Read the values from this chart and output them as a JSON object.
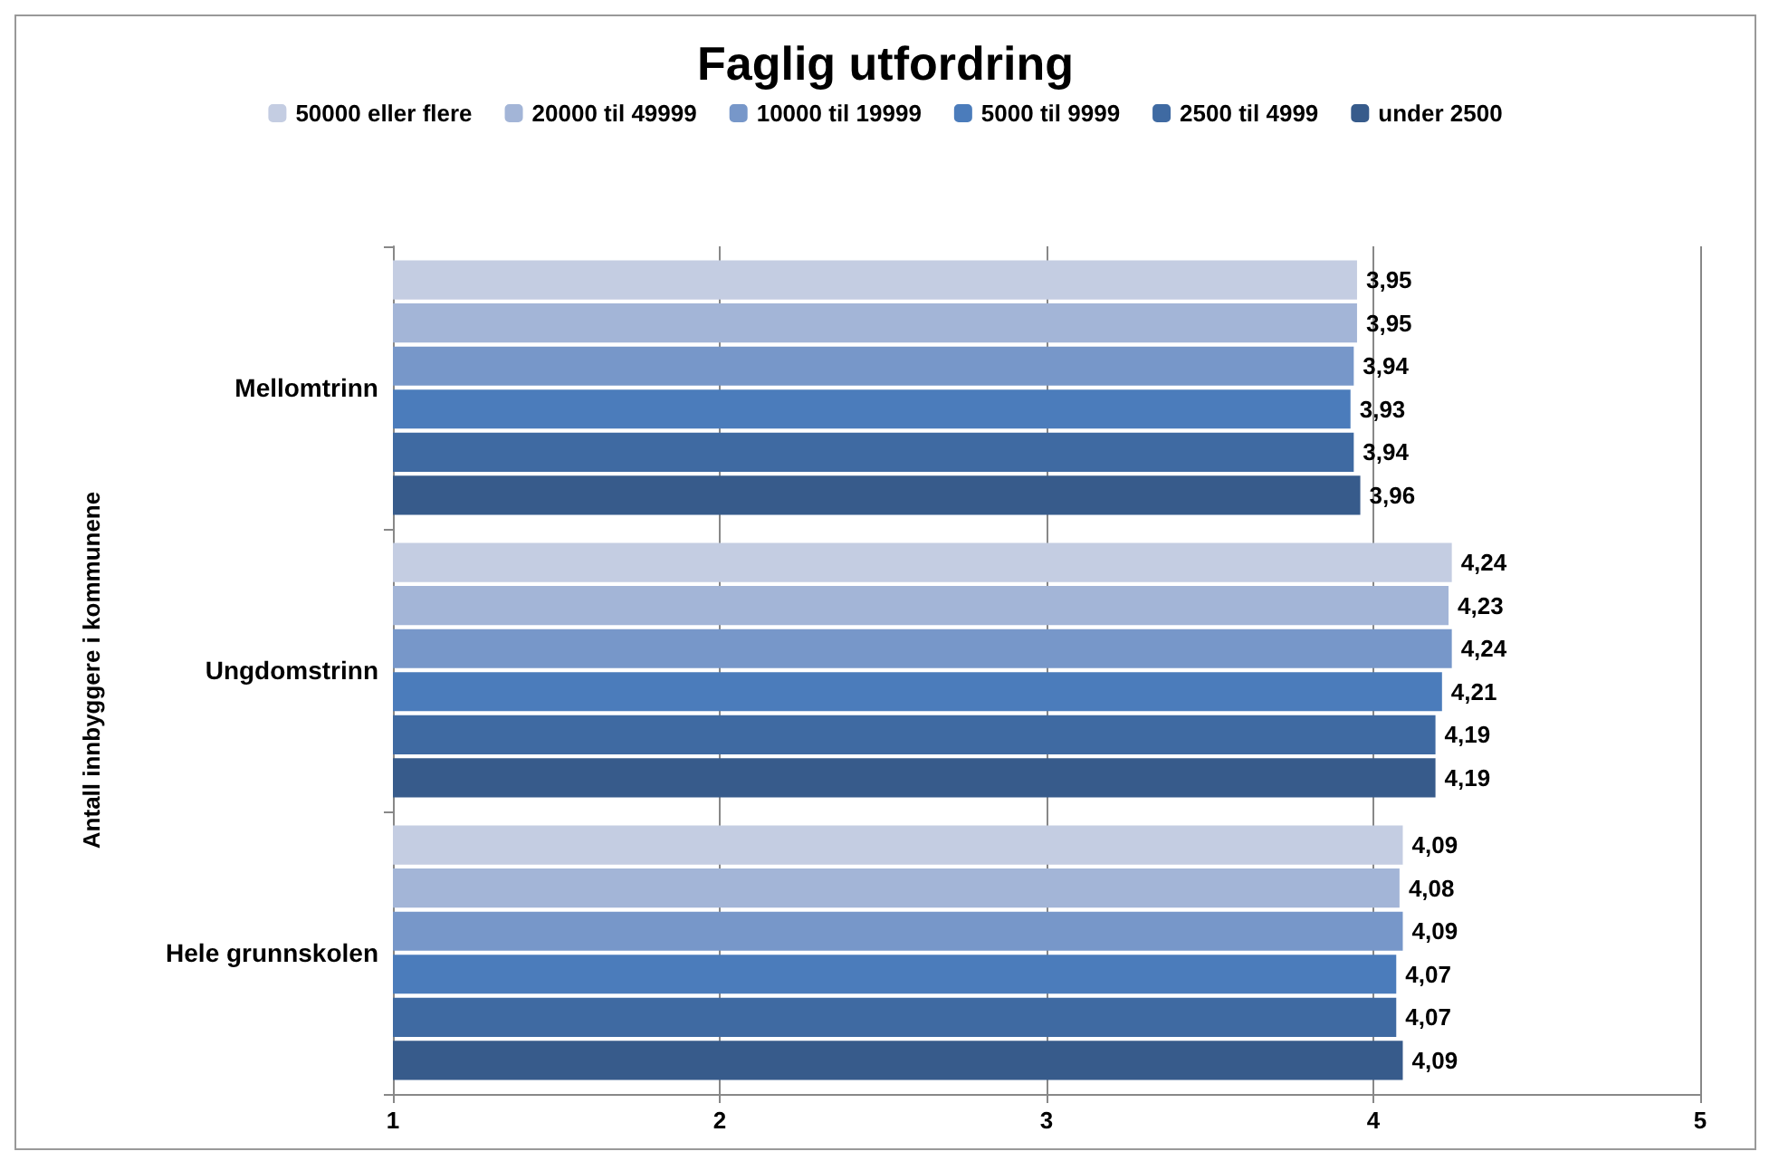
{
  "chart_data": {
    "type": "bar",
    "orientation": "horizontal",
    "title": "Faglig utfordring",
    "ylabel": "Antall innbyggere i kommunene",
    "categories": [
      "Mellomtrinn",
      "Ungdomstrinn",
      "Hele grunnskolen"
    ],
    "series": [
      {
        "name": "50000 eller flere",
        "color": "#c4cde2",
        "values": [
          3.95,
          4.24,
          4.09
        ],
        "value_labels": [
          "3,95",
          "4,24",
          "4,09"
        ]
      },
      {
        "name": "20000 til 49999",
        "color": "#a3b5d7",
        "values": [
          3.95,
          4.23,
          4.08
        ],
        "value_labels": [
          "3,95",
          "4,23",
          "4,08"
        ]
      },
      {
        "name": "10000 til 19999",
        "color": "#7797c9",
        "values": [
          3.94,
          4.24,
          4.09
        ],
        "value_labels": [
          "3,94",
          "4,24",
          "4,09"
        ]
      },
      {
        "name": "5000 til 9999",
        "color": "#4b7cbb",
        "values": [
          3.93,
          4.21,
          4.07
        ],
        "value_labels": [
          "3,93",
          "4,21",
          "4,07"
        ]
      },
      {
        "name": "2500 til 4999",
        "color": "#3f6aa2",
        "values": [
          3.94,
          4.19,
          4.07
        ],
        "value_labels": [
          "3,94",
          "4,19",
          "4,07"
        ]
      },
      {
        "name": "under 2500",
        "color": "#375b8b",
        "values": [
          3.96,
          4.19,
          4.09
        ],
        "value_labels": [
          "3,96",
          "4,19",
          "4,09"
        ]
      }
    ],
    "xlim": [
      1,
      5
    ],
    "xticks": [
      1,
      2,
      3,
      4,
      5
    ],
    "grid": "x",
    "legend": "top"
  }
}
